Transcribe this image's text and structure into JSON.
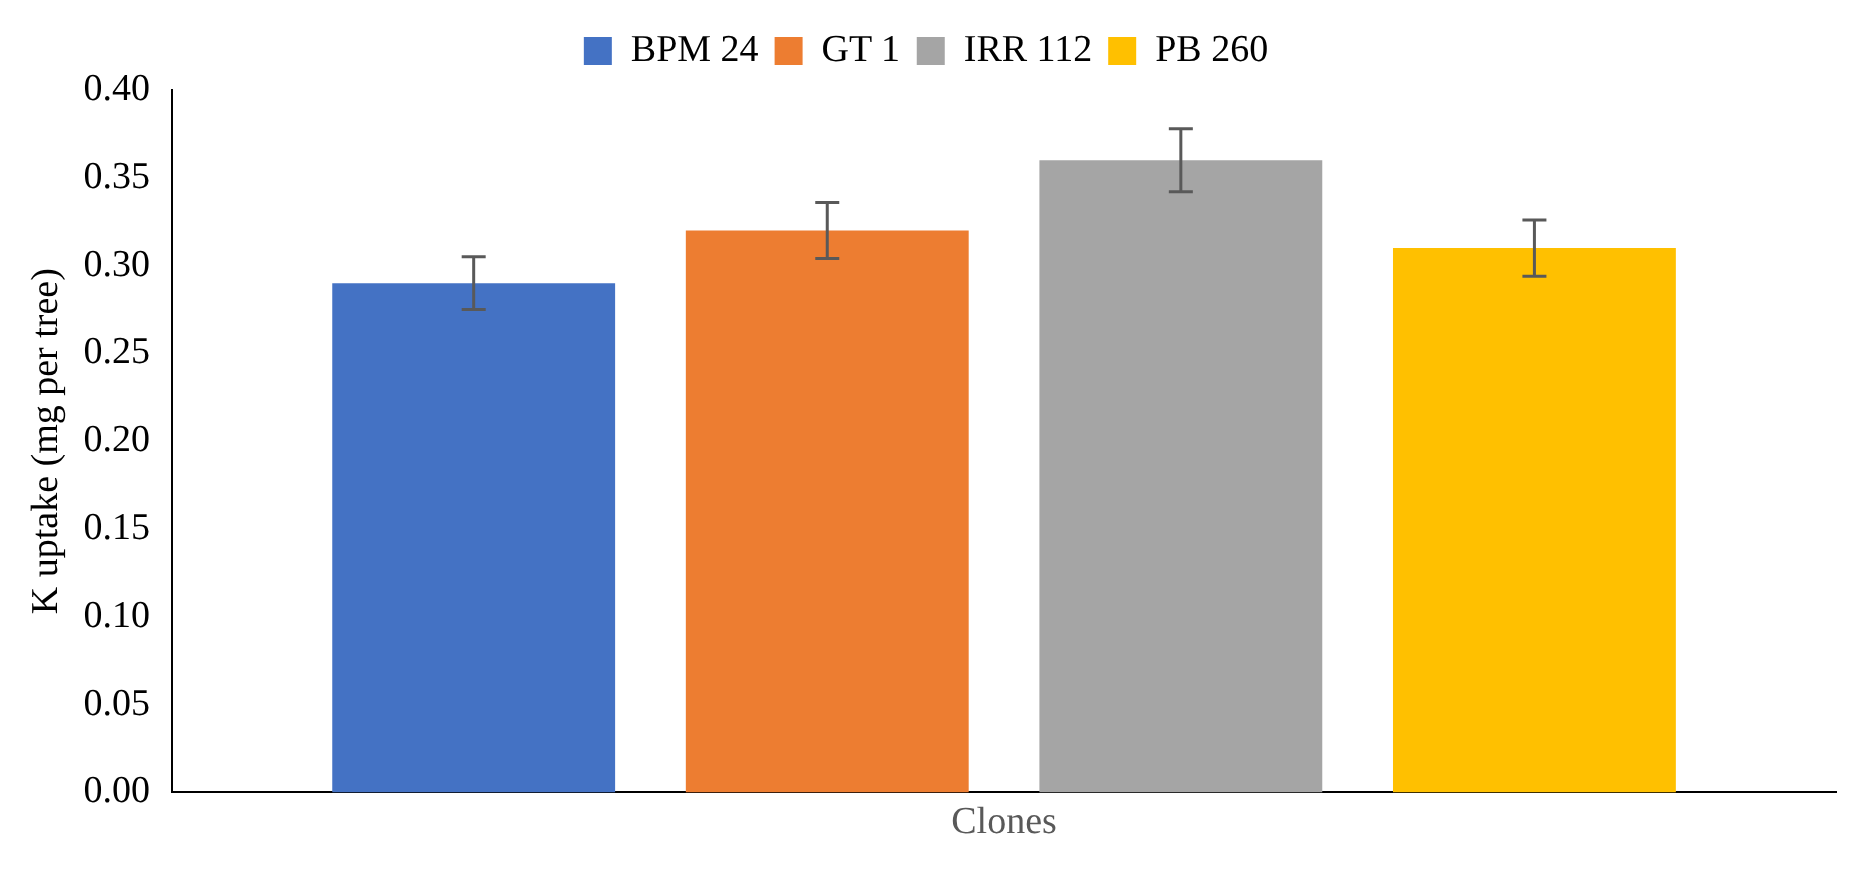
{
  "chart_data": {
    "type": "bar",
    "xlabel": "Clones",
    "ylabel": "K uptake (mg per tree)",
    "categories": [
      null
    ],
    "series": [
      {
        "name": "BPM 24",
        "color": "#4472c4",
        "values": [
          0.29
        ],
        "errors": [
          0.015
        ]
      },
      {
        "name": "GT 1",
        "color": "#ed7d31",
        "values": [
          0.32
        ],
        "errors": [
          0.016
        ]
      },
      {
        "name": "IRR 112",
        "color": "#a5a5a5",
        "values": [
          0.36
        ],
        "errors": [
          0.018
        ]
      },
      {
        "name": "PB 260",
        "color": "#ffc000",
        "values": [
          0.31
        ],
        "errors": [
          0.016
        ]
      }
    ],
    "ylim": [
      0,
      0.4
    ],
    "yticks": [
      {
        "value": 0,
        "label": "0.00"
      },
      0.05,
      {
        "value": 0.1,
        "label": "0.10"
      },
      0.15,
      {
        "value": 0.2,
        "label": "0.20"
      },
      0.25,
      {
        "value": 0.3,
        "label": "0.30"
      },
      0.35,
      {
        "value": 0.4,
        "label": "0.40"
      }
    ],
    "grid": false,
    "legend": "top"
  }
}
